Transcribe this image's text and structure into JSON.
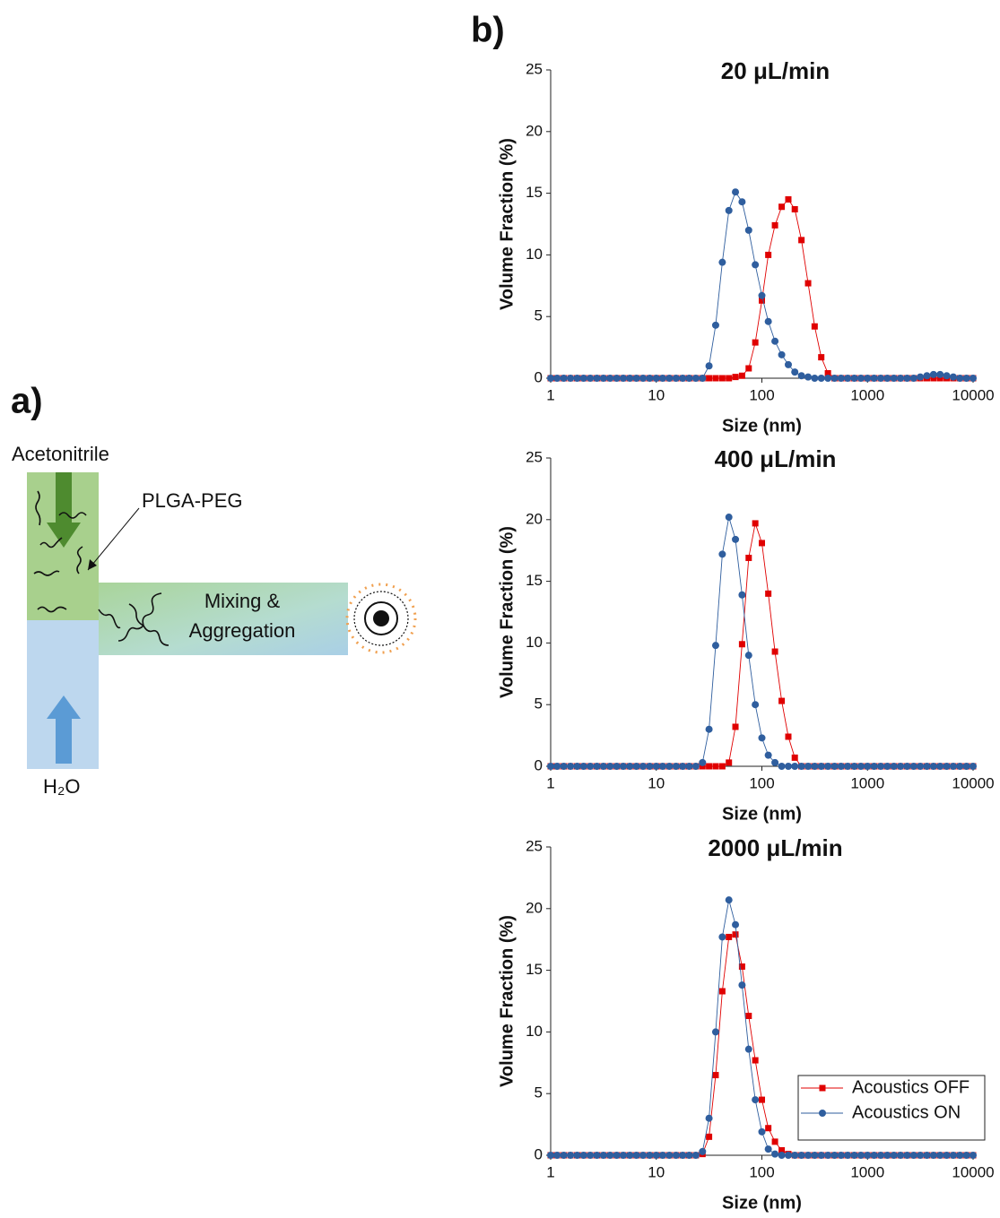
{
  "diagram": {
    "panel_label": "a)",
    "inlet_top": "Acetonitrile",
    "polymer": "PLGA-PEG",
    "mixing_line1": "Mixing &",
    "mixing_line2": "Aggregation",
    "inlet_bottom": "H₂O"
  },
  "panel_b_label": "b)",
  "chart_data": [
    {
      "type": "line",
      "title": "20 μL/min",
      "xlabel": "Size (nm)",
      "ylabel": "Volume Fraction (%)",
      "xscale": "log",
      "xlim": [
        1,
        10000
      ],
      "xticks": [
        1,
        10,
        100,
        1000,
        10000
      ],
      "ylim": [
        0,
        25
      ],
      "yticks": [
        0,
        5,
        10,
        15,
        20,
        25
      ],
      "x": [
        1,
        1.15,
        1.33,
        1.54,
        1.78,
        2.05,
        2.37,
        2.74,
        3.16,
        3.65,
        4.22,
        4.87,
        5.62,
        6.49,
        7.5,
        8.66,
        10,
        11.5,
        13.3,
        15.4,
        17.8,
        20.5,
        23.7,
        27.4,
        31.6,
        36.5,
        42.2,
        48.7,
        56.2,
        64.9,
        75,
        86.6,
        100,
        115,
        133,
        154,
        178,
        205,
        237,
        274,
        316,
        365,
        422,
        487,
        562,
        649,
        750,
        866,
        1000,
        1155,
        1334,
        1540,
        1778,
        2054,
        2371,
        2738,
        3162,
        3652,
        4217,
        4870,
        5623,
        6494,
        7499,
        8660,
        10000
      ],
      "series": [
        {
          "color": "#e00000",
          "marker": "square",
          "values": [
            0,
            0,
            0,
            0,
            0,
            0,
            0,
            0,
            0,
            0,
            0,
            0,
            0,
            0,
            0,
            0,
            0,
            0,
            0,
            0,
            0,
            0,
            0,
            0,
            0,
            0,
            0,
            0,
            0.1,
            0.2,
            0.8,
            2.9,
            6.3,
            10.0,
            12.4,
            13.9,
            14.5,
            13.7,
            11.2,
            7.7,
            4.2,
            1.7,
            0.4,
            0,
            0,
            0,
            0,
            0,
            0,
            0,
            0,
            0,
            0,
            0,
            0,
            0,
            0,
            0,
            0,
            0,
            0,
            0,
            0,
            0,
            0
          ]
        },
        {
          "color": "#2f5e9e",
          "marker": "circle",
          "values": [
            0,
            0,
            0,
            0,
            0,
            0,
            0,
            0,
            0,
            0,
            0,
            0,
            0,
            0,
            0,
            0,
            0,
            0,
            0,
            0,
            0,
            0,
            0,
            0,
            1.0,
            4.3,
            9.4,
            13.6,
            15.1,
            14.3,
            12.0,
            9.2,
            6.7,
            4.6,
            3.0,
            1.9,
            1.1,
            0.5,
            0.2,
            0.1,
            0,
            0,
            0,
            0,
            0,
            0,
            0,
            0,
            0,
            0,
            0,
            0,
            0,
            0,
            0,
            0,
            0.1,
            0.2,
            0.3,
            0.3,
            0.2,
            0.1,
            0,
            0,
            0
          ]
        }
      ]
    },
    {
      "type": "line",
      "title": "400 μL/min",
      "xlabel": "Size (nm)",
      "ylabel": "Volume Fraction (%)",
      "xscale": "log",
      "xlim": [
        1,
        10000
      ],
      "xticks": [
        1,
        10,
        100,
        1000,
        10000
      ],
      "ylim": [
        0,
        25
      ],
      "yticks": [
        0,
        5,
        10,
        15,
        20,
        25
      ],
      "x": [
        1,
        1.15,
        1.33,
        1.54,
        1.78,
        2.05,
        2.37,
        2.74,
        3.16,
        3.65,
        4.22,
        4.87,
        5.62,
        6.49,
        7.5,
        8.66,
        10,
        11.5,
        13.3,
        15.4,
        17.8,
        20.5,
        23.7,
        27.4,
        31.6,
        36.5,
        42.2,
        48.7,
        56.2,
        64.9,
        75,
        86.6,
        100,
        115,
        133,
        154,
        178,
        205,
        237,
        274,
        316,
        365,
        422,
        487,
        562,
        649,
        750,
        866,
        1000,
        1155,
        1334,
        1540,
        1778,
        2054,
        2371,
        2738,
        3162,
        3652,
        4217,
        4870,
        5623,
        6494,
        7499,
        8660,
        10000
      ],
      "series": [
        {
          "color": "#e00000",
          "marker": "square",
          "values": [
            0,
            0,
            0,
            0,
            0,
            0,
            0,
            0,
            0,
            0,
            0,
            0,
            0,
            0,
            0,
            0,
            0,
            0,
            0,
            0,
            0,
            0,
            0,
            0,
            0,
            0,
            0,
            0.3,
            3.2,
            9.9,
            16.9,
            19.7,
            18.1,
            14.0,
            9.3,
            5.3,
            2.4,
            0.7,
            0,
            0,
            0,
            0,
            0,
            0,
            0,
            0,
            0,
            0,
            0,
            0,
            0,
            0,
            0,
            0,
            0,
            0,
            0,
            0,
            0,
            0,
            0,
            0,
            0,
            0,
            0
          ]
        },
        {
          "color": "#2f5e9e",
          "marker": "circle",
          "values": [
            0,
            0,
            0,
            0,
            0,
            0,
            0,
            0,
            0,
            0,
            0,
            0,
            0,
            0,
            0,
            0,
            0,
            0,
            0,
            0,
            0,
            0,
            0,
            0.3,
            3.0,
            9.8,
            17.2,
            20.2,
            18.4,
            13.9,
            9.0,
            5.0,
            2.3,
            0.9,
            0.3,
            0,
            0,
            0,
            0,
            0,
            0,
            0,
            0,
            0,
            0,
            0,
            0,
            0,
            0,
            0,
            0,
            0,
            0,
            0,
            0,
            0,
            0,
            0,
            0,
            0,
            0,
            0,
            0,
            0,
            0
          ]
        }
      ]
    },
    {
      "type": "line",
      "title": "2000 μL/min",
      "xlabel": "Size (nm)",
      "ylabel": "Volume Fraction (%)",
      "xscale": "log",
      "xlim": [
        1,
        10000
      ],
      "xticks": [
        1,
        10,
        100,
        1000,
        10000
      ],
      "ylim": [
        0,
        25
      ],
      "yticks": [
        0,
        5,
        10,
        15,
        20,
        25
      ],
      "legend": "lower right",
      "x": [
        1,
        1.15,
        1.33,
        1.54,
        1.78,
        2.05,
        2.37,
        2.74,
        3.16,
        3.65,
        4.22,
        4.87,
        5.62,
        6.49,
        7.5,
        8.66,
        10,
        11.5,
        13.3,
        15.4,
        17.8,
        20.5,
        23.7,
        27.4,
        31.6,
        36.5,
        42.2,
        48.7,
        56.2,
        64.9,
        75,
        86.6,
        100,
        115,
        133,
        154,
        178,
        205,
        237,
        274,
        316,
        365,
        422,
        487,
        562,
        649,
        750,
        866,
        1000,
        1155,
        1334,
        1540,
        1778,
        2054,
        2371,
        2738,
        3162,
        3652,
        4217,
        4870,
        5623,
        6494,
        7499,
        8660,
        10000
      ],
      "series": [
        {
          "name": "Acoustics OFF",
          "color": "#e00000",
          "marker": "square",
          "values": [
            0,
            0,
            0,
            0,
            0,
            0,
            0,
            0,
            0,
            0,
            0,
            0,
            0,
            0,
            0,
            0,
            0,
            0,
            0,
            0,
            0,
            0,
            0,
            0.1,
            1.5,
            6.5,
            13.3,
            17.7,
            17.9,
            15.3,
            11.3,
            7.7,
            4.5,
            2.2,
            1.1,
            0.4,
            0.1,
            0,
            0,
            0,
            0,
            0,
            0,
            0,
            0,
            0,
            0,
            0,
            0,
            0,
            0,
            0,
            0,
            0,
            0,
            0,
            0,
            0,
            0,
            0,
            0,
            0,
            0,
            0,
            0
          ]
        },
        {
          "name": "Acoustics ON",
          "color": "#2f5e9e",
          "marker": "circle",
          "values": [
            0,
            0,
            0,
            0,
            0,
            0,
            0,
            0,
            0,
            0,
            0,
            0,
            0,
            0,
            0,
            0,
            0,
            0,
            0,
            0,
            0,
            0,
            0,
            0.3,
            3.0,
            10.0,
            17.7,
            20.7,
            18.7,
            13.8,
            8.6,
            4.5,
            1.9,
            0.5,
            0.1,
            0,
            0,
            0,
            0,
            0,
            0,
            0,
            0,
            0,
            0,
            0,
            0,
            0,
            0,
            0,
            0,
            0,
            0,
            0,
            0,
            0,
            0,
            0,
            0,
            0,
            0,
            0,
            0,
            0,
            0
          ]
        }
      ]
    }
  ]
}
